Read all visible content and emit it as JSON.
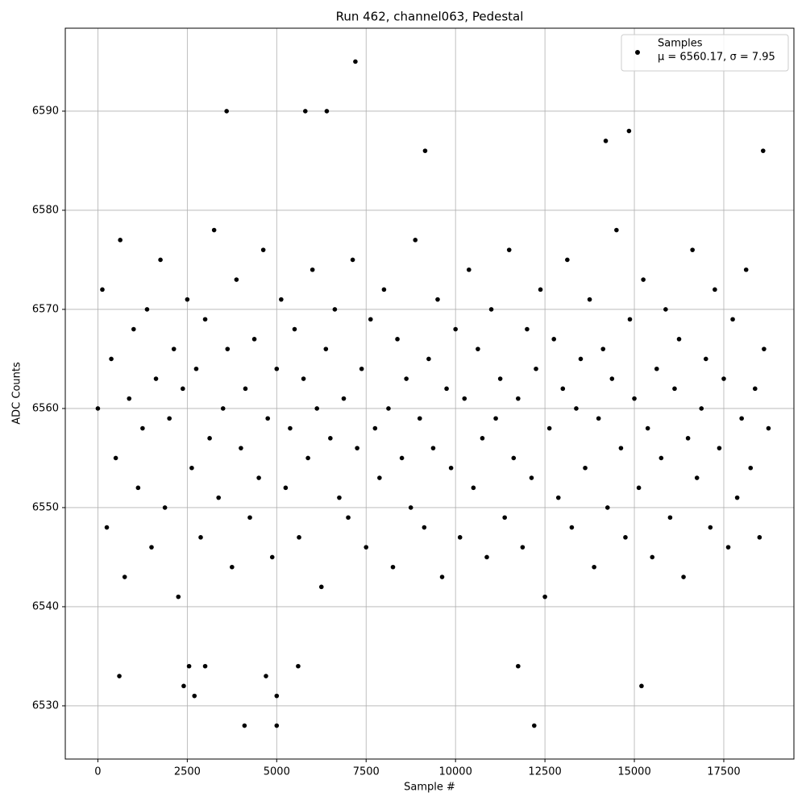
{
  "chart_data": {
    "type": "scatter",
    "title": "Run 462, channel063, Pedestal",
    "x_label": "Sample #",
    "y_label": "ADC Counts",
    "legend_note": "μ = 6560.17, σ = 7.95",
    "legend_position": "upper right",
    "grid": true,
    "xlim": [
      -911,
      19461
    ],
    "ylim": [
      6524.63,
      6598.37
    ],
    "xticks": [
      0,
      2500,
      5000,
      7500,
      10000,
      12500,
      15000,
      17500
    ],
    "yticks": [
      6530,
      6540,
      6550,
      6560,
      6570,
      6580,
      6590
    ],
    "series": [
      {
        "name": "Samples",
        "color": "#000000",
        "x": [
          0,
          125,
          250,
          375,
          500,
          625,
          750,
          875,
          1000,
          1125,
          1250,
          1375,
          1500,
          1625,
          1750,
          1875,
          2000,
          2125,
          2250,
          2375,
          2500,
          2625,
          2750,
          2875,
          3000,
          3125,
          3250,
          3375,
          3500,
          3625,
          3750,
          3875,
          4000,
          4125,
          4250,
          4375,
          4500,
          4625,
          4750,
          4875,
          5000,
          5125,
          5250,
          5375,
          5500,
          5625,
          5750,
          5875,
          6000,
          6125,
          6250,
          6375,
          6500,
          6625,
          6750,
          6875,
          7000,
          7125,
          7250,
          7375,
          7500,
          7625,
          7750,
          7875,
          8000,
          8125,
          8250,
          8375,
          8500,
          8625,
          8750,
          8875,
          9000,
          9125,
          9250,
          9375,
          9500,
          9625,
          9750,
          9875,
          10000,
          10125,
          10250,
          10375,
          10500,
          10625,
          10750,
          10875,
          11000,
          11125,
          11250,
          11375,
          11500,
          11625,
          11750,
          11875,
          12000,
          12125,
          12250,
          12375,
          12500,
          12625,
          12750,
          12875,
          13000,
          13125,
          13250,
          13375,
          13500,
          13625,
          13750,
          13875,
          14000,
          14125,
          14250,
          14375,
          14500,
          14625,
          14750,
          14875,
          15000,
          15125,
          15250,
          15375,
          15500,
          15625,
          15750,
          15875,
          16000,
          16125,
          16250,
          16375,
          16500,
          16625,
          16750,
          16875,
          17000,
          17125,
          17250,
          17375,
          17500,
          17625,
          17750,
          17875,
          18000,
          18125,
          18250,
          18375,
          18500,
          18625,
          18750,
          4100,
          5000,
          12200,
          7200,
          3600,
          5800,
          6400,
          14850,
          14200,
          18600,
          9150,
          600,
          4700,
          15200,
          2400,
          2700,
          5000,
          11750,
          2550,
          3000,
          5600
        ],
        "values": [
          6560,
          6572,
          6548,
          6565,
          6555,
          6577,
          6543,
          6561,
          6568,
          6552,
          6558,
          6570,
          6546,
          6563,
          6575,
          6550,
          6559,
          6566,
          6541,
          6562,
          6571,
          6554,
          6564,
          6547,
          6569,
          6557,
          6578,
          6551,
          6560,
          6566,
          6544,
          6573,
          6556,
          6562,
          6549,
          6567,
          6553,
          6576,
          6559,
          6545,
          6564,
          6571,
          6552,
          6558,
          6568,
          6547,
          6563,
          6555,
          6574,
          6560,
          6542,
          6566,
          6557,
          6570,
          6551,
          6561,
          6549,
          6575,
          6556,
          6564,
          6546,
          6569,
          6558,
          6553,
          6572,
          6560,
          6544,
          6567,
          6555,
          6563,
          6550,
          6577,
          6559,
          6548,
          6565,
          6556,
          6571,
          6543,
          6562,
          6554,
          6568,
          6547,
          6561,
          6574,
          6552,
          6566,
          6557,
          6545,
          6570,
          6559,
          6563,
          6549,
          6576,
          6555,
          6561,
          6546,
          6568,
          6553,
          6564,
          6572,
          6541,
          6558,
          6567,
          6551,
          6562,
          6575,
          6548,
          6560,
          6565,
          6554,
          6571,
          6544,
          6559,
          6566,
          6550,
          6563,
          6578,
          6556,
          6547,
          6569,
          6561,
          6552,
          6573,
          6558,
          6545,
          6564,
          6555,
          6570,
          6549,
          6562,
          6567,
          6543,
          6557,
          6576,
          6553,
          6560,
          6565,
          6548,
          6572,
          6556,
          6563,
          6546,
          6569,
          6551,
          6559,
          6574,
          6554,
          6562,
          6547,
          6566,
          6558,
          6528,
          6528,
          6528,
          6595,
          6590,
          6590,
          6590,
          6588,
          6587,
          6586,
          6586,
          6533,
          6533,
          6532,
          6532,
          6531,
          6531,
          6534,
          6534,
          6534,
          6534
        ]
      }
    ]
  }
}
